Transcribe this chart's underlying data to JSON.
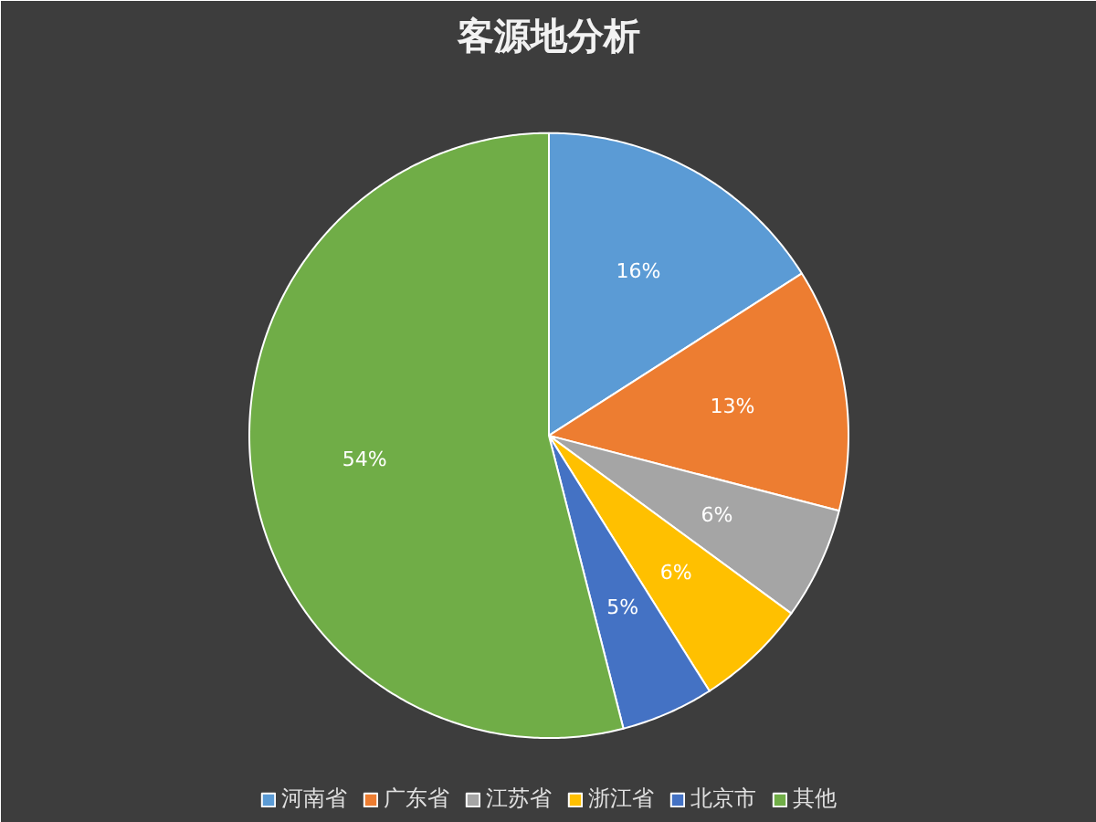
{
  "chart_data": {
    "type": "pie",
    "title": "客源地分析",
    "categories": [
      "河南省",
      "广东省",
      "江苏省",
      "浙江省",
      "北京市",
      "其他"
    ],
    "values": [
      16,
      13,
      6,
      6,
      5,
      54
    ],
    "colors": [
      "#5b9bd5",
      "#ed7d31",
      "#a5a5a5",
      "#ffc000",
      "#4472c4",
      "#70ad47"
    ],
    "value_labels": [
      "16%",
      "13%",
      "6%",
      "6%",
      "5%",
      "54%"
    ],
    "legend": "bottom"
  }
}
